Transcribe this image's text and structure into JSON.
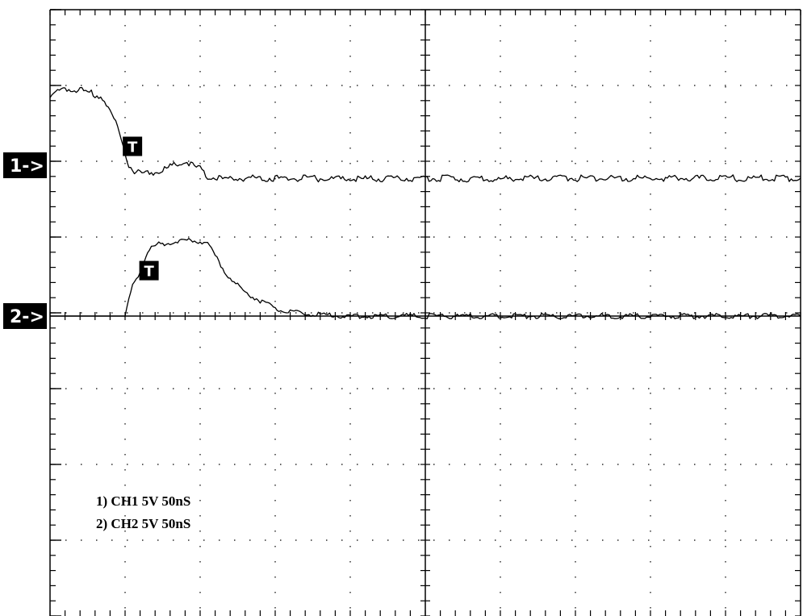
{
  "chart_data": {
    "type": "line",
    "title": "",
    "xlabel": "",
    "ylabel": "",
    "grid": true,
    "x_divisions": 10,
    "y_divisions": 8,
    "series": [
      {
        "name": "CH1 5V 50nS",
        "marker_label": "1->",
        "trigger_label": "T",
        "trigger_point": [
          0.98,
          -0.25
        ],
        "color": "#000000",
        "x": [
          0,
          0.15,
          0.4,
          0.7,
          0.8,
          0.9,
          0.98,
          1.05,
          1.15,
          1.3,
          1.45,
          1.6,
          1.8,
          1.9,
          2.0,
          2.1,
          2.3,
          2.6,
          3.0,
          4.0,
          5.0,
          6.0,
          7.0,
          8.0,
          9.0,
          10.0
        ],
        "y": [
          -0.9,
          -1.0,
          -1.0,
          -0.9,
          -0.7,
          -0.5,
          -0.25,
          0.0,
          0.1,
          0.1,
          0.08,
          0.02,
          -0.05,
          0.0,
          0.05,
          0.15,
          0.18,
          0.17,
          0.17,
          0.18,
          0.17,
          0.18,
          0.17,
          0.17,
          0.17,
          0.17
        ]
      },
      {
        "name": "CH2 5V 50nS",
        "marker_label": "2->",
        "trigger_label": "T",
        "trigger_point": [
          1.2,
          -0.6
        ],
        "color": "#000000",
        "x": [
          0,
          0.5,
          1.0,
          1.05,
          1.1,
          1.2,
          1.3,
          1.35,
          1.45,
          1.6,
          1.75,
          1.9,
          2.1,
          2.2,
          2.35,
          2.55,
          2.8,
          3.0,
          3.2,
          3.5,
          4.0,
          5.0,
          6.0,
          7.0,
          8.0,
          9.0,
          10.0
        ],
        "y": [
          0.0,
          0.0,
          0.0,
          -0.2,
          -0.4,
          -0.6,
          -0.85,
          -0.9,
          -0.95,
          -0.97,
          -1.0,
          -1.0,
          -0.97,
          -0.8,
          -0.55,
          -0.35,
          -0.2,
          -0.1,
          -0.05,
          -0.02,
          0.0,
          0.0,
          0.0,
          0.0,
          0.0,
          0.0,
          0.0
        ]
      }
    ],
    "annotations": [
      "1) CH1 5V 50nS",
      "2) CH2 5V 50nS"
    ]
  }
}
